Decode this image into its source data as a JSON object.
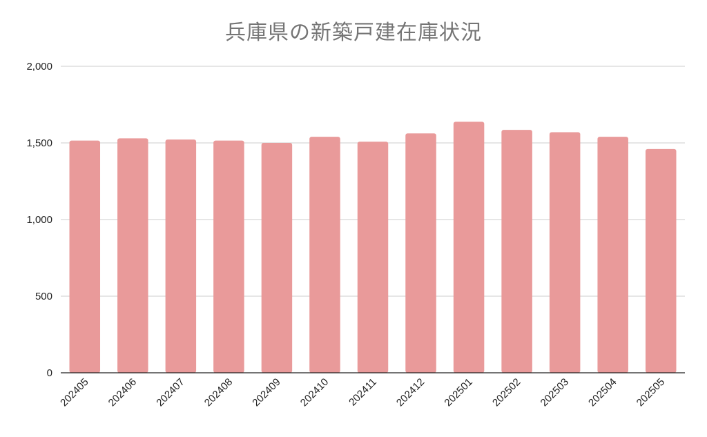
{
  "chart_data": {
    "type": "bar",
    "title": "兵庫県の新築戸建在庫状況",
    "categories": [
      "202405",
      "202406",
      "202407",
      "202408",
      "202409",
      "202410",
      "202411",
      "202412",
      "202501",
      "202502",
      "202503",
      "202504",
      "202505"
    ],
    "values": [
      1515,
      1530,
      1522,
      1515,
      1500,
      1540,
      1508,
      1562,
      1638,
      1585,
      1570,
      1540,
      1460
    ],
    "ylim": [
      0,
      2000
    ],
    "yticks": [
      0,
      500,
      1000,
      1500,
      2000
    ],
    "ytick_labels": [
      "0",
      "500",
      "1,000",
      "1,500",
      "2,000"
    ],
    "xlabel": "",
    "ylabel": "",
    "grid": true,
    "legend": "none",
    "bar_color": "#e99a9a"
  }
}
